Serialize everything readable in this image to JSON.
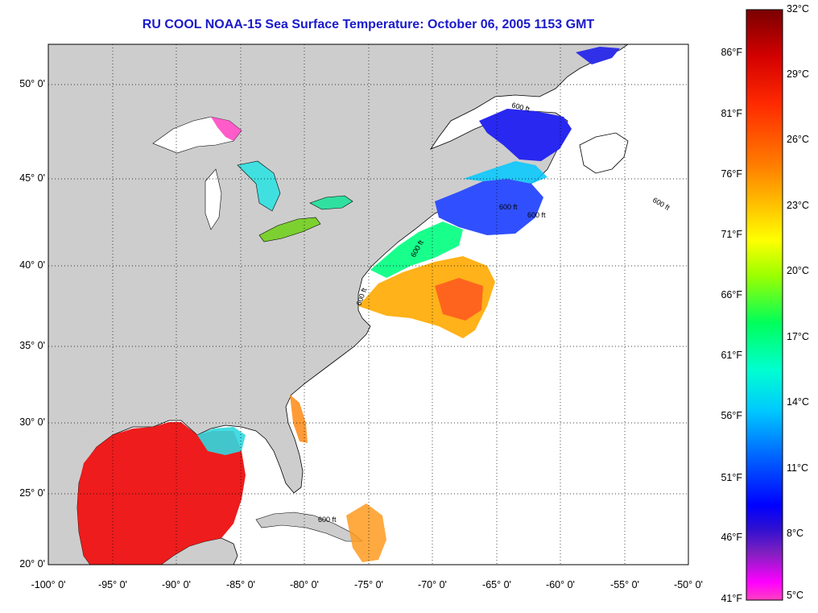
{
  "title": "RU COOL  NOAA-15  Sea Surface Temperature:  October 06, 2005 1153 GMT",
  "map": {
    "longitude_labels": [
      "-100° 0'",
      "-95° 0'",
      "-90° 0'",
      "-85° 0'",
      "-80° 0'",
      "-75° 0'",
      "-70° 0'",
      "-65° 0'",
      "-60° 0'",
      "-55° 0'",
      "-50° 0'"
    ],
    "latitude_labels": [
      "50° 0'",
      "45° 0'",
      "40° 0'",
      "35° 0'",
      "30° 0'",
      "25° 0'",
      "20° 0'"
    ],
    "isobath_labels": [
      "600 ft",
      "600 ft",
      "600 ft",
      "600 ft",
      "600 ft",
      "600 ft",
      "600 ft"
    ],
    "colors": {
      "land": "#cdcdcd",
      "ocean_nodata": "#ffffff",
      "title": "#1a1acc"
    }
  },
  "colorbar": {
    "fahrenheit_labels": [
      "86°F",
      "81°F",
      "76°F",
      "71°F",
      "66°F",
      "61°F",
      "56°F",
      "51°F",
      "46°F",
      "41°F"
    ],
    "celsius_labels": [
      "32°C",
      "29°C",
      "26°C",
      "23°C",
      "20°C",
      "17°C",
      "14°C",
      "11°C",
      "8°C",
      "5°C"
    ],
    "gradient": [
      "#7a0000",
      "#d40000",
      "#ff2a00",
      "#ff7a00",
      "#ffc000",
      "#ffff00",
      "#9cff00",
      "#00ff5a",
      "#00ffd0",
      "#00c8ff",
      "#0060ff",
      "#0000ff",
      "#3010d0",
      "#8020c0",
      "#ff00ff",
      "#ff40c0"
    ]
  }
}
